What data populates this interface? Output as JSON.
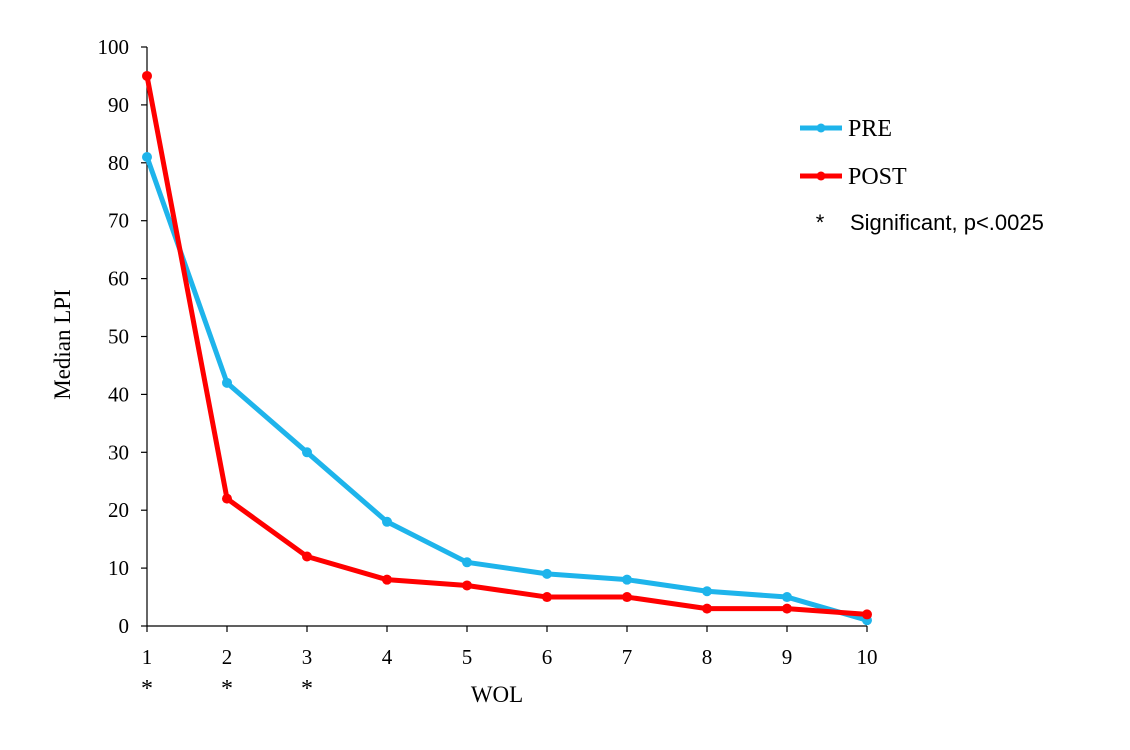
{
  "chart_data": {
    "type": "line",
    "xlabel": "WOL",
    "ylabel": "Median LPI",
    "x": [
      1,
      2,
      3,
      4,
      5,
      6,
      7,
      8,
      9,
      10
    ],
    "xlim": [
      1,
      10
    ],
    "ylim": [
      0,
      100
    ],
    "yticks": [
      0,
      10,
      20,
      30,
      40,
      50,
      60,
      70,
      80,
      90,
      100
    ],
    "grid": false,
    "legend_position": "right",
    "series": [
      {
        "name": "PRE",
        "color": "#1EB4EB",
        "values": [
          81,
          42,
          30,
          18,
          11,
          9,
          8,
          6,
          5,
          1
        ]
      },
      {
        "name": "POST",
        "color": "#FF0000",
        "values": [
          95,
          22,
          12,
          8,
          7,
          5,
          5,
          3,
          3,
          2
        ]
      }
    ],
    "significant_x": [
      1,
      2,
      3
    ],
    "significance_marker": "*",
    "significance_note": "Significant, p<.0025"
  }
}
